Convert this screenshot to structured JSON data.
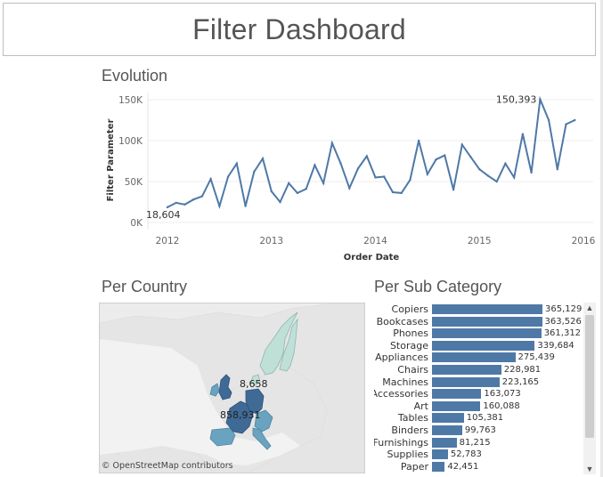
{
  "header": {
    "title": "Filter Dashboard"
  },
  "evolution": {
    "title": "Evolution",
    "chart_data": {
      "type": "line",
      "title": "Evolution",
      "xlabel": "Order Date",
      "ylabel": "Filter Parameter",
      "x_ticks": [
        "2012",
        "2013",
        "2014",
        "2015",
        "2016"
      ],
      "y_ticks": [
        "0K",
        "50K",
        "100K",
        "150K"
      ],
      "ylim": [
        0,
        150000
      ],
      "xlim": [
        2012,
        2016
      ],
      "series": [
        {
          "name": "Filter Parameter",
          "values": [
            18604,
            24000,
            22000,
            28000,
            32000,
            53000,
            20000,
            56000,
            72000,
            20000,
            62000,
            78000,
            38000,
            25000,
            48000,
            36000,
            41000,
            70000,
            48000,
            97000,
            72000,
            42000,
            66000,
            81000,
            55000,
            56000,
            37000,
            36000,
            52000,
            100000,
            59000,
            77000,
            82000,
            40000,
            95000,
            80000,
            65000,
            57000,
            50000,
            72000,
            55000,
            108000,
            61000,
            150393,
            125000,
            65000,
            120000,
            125000
          ]
        }
      ],
      "annotations": [
        {
          "label": "18,604",
          "point": "first"
        },
        {
          "label": "150,393",
          "point": "max"
        }
      ]
    }
  },
  "country": {
    "title": "Per Country",
    "labels": [
      "8,658",
      "858,931"
    ],
    "attribution": "© OpenStreetMap contributors"
  },
  "subcategory": {
    "title": "Per Sub Category",
    "chart_data": {
      "type": "bar",
      "orientation": "horizontal",
      "title": "Per Sub Category",
      "categories": [
        "Copiers",
        "Bookcases",
        "Phones",
        "Storage",
        "Appliances",
        "Chairs",
        "Machines",
        "Accessories",
        "Art",
        "Tables",
        "Binders",
        "Furnishings",
        "Supplies",
        "Paper"
      ],
      "values": [
        365129,
        363526,
        361312,
        339684,
        275439,
        228981,
        223165,
        163073,
        160088,
        105381,
        99763,
        81215,
        52783,
        42451
      ],
      "value_labels": [
        "365,129",
        "363,526",
        "361,312",
        "339,684",
        "275,439",
        "228,981",
        "223,165",
        "163,073",
        "160,088",
        "105,381",
        "99,763",
        "81,215",
        "52,783",
        "42,451"
      ],
      "xlim": [
        0,
        365129
      ]
    }
  },
  "colors": {
    "line": "#4e79a7",
    "bar": "#4e79a7",
    "map_dark": "#3f6a96",
    "map_mid": "#6aa3bf",
    "map_light": "#bfe0d6",
    "map_bg": "#ececec"
  }
}
